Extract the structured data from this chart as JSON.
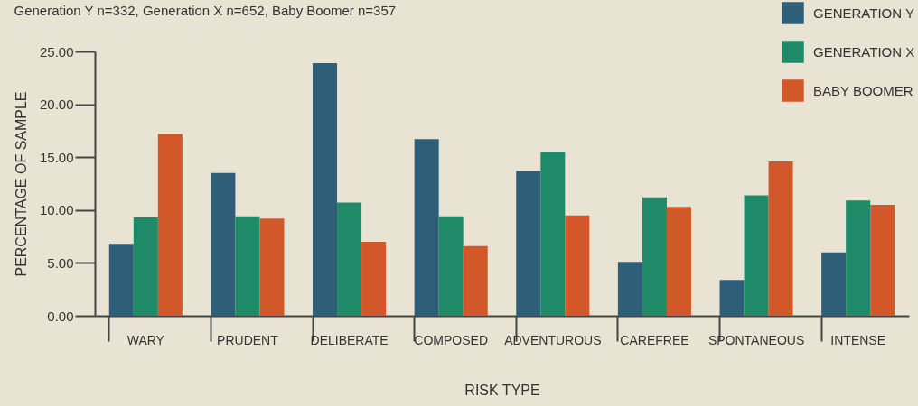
{
  "chart_data": {
    "type": "bar",
    "title": "Generation Y n=332, Generation X n=652, Baby Boomer n=357",
    "xlabel": "RISK TYPE",
    "ylabel": "PERCENTAGE OF SAMPLE",
    "categories": [
      "WARY",
      "PRUDENT",
      "DELIBERATE",
      "COMPOSED",
      "ADVENTUROUS",
      "CAREFREE",
      "SPONTANEOUS",
      "INTENSE"
    ],
    "series": [
      {
        "name": "GENERATION Y",
        "color": "#2e5e78",
        "values": [
          6.8,
          13.5,
          23.9,
          16.7,
          13.7,
          5.1,
          3.4,
          6.0
        ]
      },
      {
        "name": "GENERATION X",
        "color": "#1f8a68",
        "values": [
          9.3,
          9.4,
          10.7,
          9.4,
          15.5,
          11.2,
          11.4,
          10.9
        ]
      },
      {
        "name": "BABY BOOMER",
        "color": "#d2582a",
        "values": [
          17.2,
          9.2,
          7.0,
          6.6,
          9.5,
          10.3,
          14.6,
          10.5
        ]
      }
    ],
    "ylim": [
      0,
      25
    ],
    "yticks": [
      {
        "value": 0,
        "label": "0.00"
      },
      {
        "value": 5,
        "label": "5.00"
      },
      {
        "value": 10,
        "label": "10.00"
      },
      {
        "value": 15,
        "label": "15.00"
      },
      {
        "value": 20,
        "label": "20.00"
      },
      {
        "value": 25,
        "label": "25.00"
      }
    ],
    "grid": false,
    "legend": "top right"
  }
}
